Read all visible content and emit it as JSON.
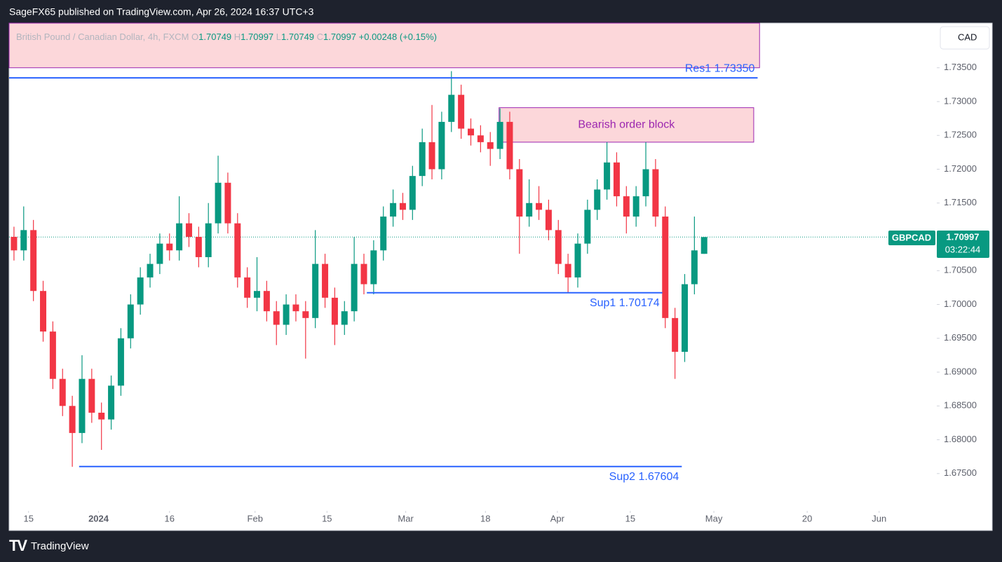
{
  "publisher": "SageFX65 published on TradingView.com, Apr 26, 2024 16:37 UTC+3",
  "brand": "TradingView",
  "currency_button": "CAD",
  "chart_data": {
    "type": "candlestick",
    "title": "British Pound / Canadian Dollar, 4h, FXCM",
    "legend": {
      "open_label": "O",
      "high_label": "H",
      "low_label": "L",
      "close_label": "C",
      "change": "+0.00248",
      "change_pct": "(+0.15%)"
    },
    "up_color": "#089981",
    "down_color": "#f23645",
    "open": [
      1.71,
      1.708,
      1.711,
      1.702,
      1.696,
      1.689,
      1.685,
      1.681,
      1.689,
      1.684,
      1.683,
      1.688,
      1.695,
      1.7,
      1.704,
      1.706,
      1.709,
      1.708,
      1.712,
      1.71,
      1.707,
      1.712,
      1.718,
      1.712,
      1.704,
      1.701,
      1.702,
      1.699,
      1.697,
      1.7,
      1.699,
      1.698,
      1.706,
      1.701,
      1.697,
      1.699,
      1.706,
      1.703,
      1.708,
      1.713,
      1.715,
      1.714,
      1.719,
      1.724,
      1.72,
      1.727,
      1.731,
      1.726,
      1.725,
      1.724,
      1.723,
      1.727,
      1.72,
      1.713,
      1.715,
      1.714,
      1.711,
      1.706,
      1.704,
      1.709,
      1.714,
      1.717,
      1.721,
      1.716,
      1.713,
      1.716,
      1.72,
      1.713,
      1.698,
      1.693,
      1.703,
      1.70749
    ],
    "high": [
      1.7115,
      1.7145,
      1.7125,
      1.7035,
      1.6975,
      1.6905,
      1.6865,
      1.6925,
      1.6905,
      1.6855,
      1.6895,
      1.6965,
      1.7015,
      1.7055,
      1.7075,
      1.7105,
      1.7105,
      1.716,
      1.7135,
      1.7115,
      1.715,
      1.722,
      1.7195,
      1.7135,
      1.7055,
      1.707,
      1.7035,
      1.7005,
      1.7015,
      1.7015,
      1.7005,
      1.711,
      1.7075,
      1.7025,
      1.7005,
      1.71,
      1.7075,
      1.7095,
      1.7145,
      1.717,
      1.7165,
      1.7205,
      1.726,
      1.7295,
      1.7285,
      1.7345,
      1.7325,
      1.7275,
      1.7265,
      1.7255,
      1.729,
      1.7285,
      1.7215,
      1.7185,
      1.7175,
      1.7155,
      1.7125,
      1.7075,
      1.7105,
      1.7155,
      1.7185,
      1.724,
      1.7225,
      1.7175,
      1.7175,
      1.724,
      1.7215,
      1.7145,
      1.6995,
      1.7045,
      1.713,
      1.70997
    ],
    "low": [
      1.7065,
      1.7065,
      1.7005,
      1.6945,
      1.6875,
      1.6835,
      1.676,
      1.6795,
      1.6825,
      1.6785,
      1.6815,
      1.6865,
      1.6935,
      1.6985,
      1.7025,
      1.7045,
      1.7065,
      1.7065,
      1.7085,
      1.7055,
      1.7055,
      1.7105,
      1.7105,
      1.7025,
      1.6995,
      1.699,
      1.6975,
      1.694,
      1.6955,
      1.6975,
      1.692,
      1.6965,
      1.6995,
      1.694,
      1.6955,
      1.6975,
      1.7015,
      1.7015,
      1.7065,
      1.7115,
      1.7125,
      1.7125,
      1.7175,
      1.7185,
      1.7185,
      1.7255,
      1.7245,
      1.7235,
      1.7225,
      1.7205,
      1.7215,
      1.7185,
      1.7075,
      1.7115,
      1.7125,
      1.7095,
      1.7045,
      1.7017,
      1.7025,
      1.7075,
      1.7125,
      1.7155,
      1.7145,
      1.7105,
      1.7115,
      1.7145,
      1.7115,
      1.6965,
      1.689,
      1.6915,
      1.7015,
      1.70749
    ],
    "close": [
      1.708,
      1.711,
      1.702,
      1.696,
      1.689,
      1.685,
      1.681,
      1.689,
      1.684,
      1.683,
      1.688,
      1.695,
      1.7,
      1.704,
      1.706,
      1.709,
      1.708,
      1.712,
      1.71,
      1.707,
      1.712,
      1.718,
      1.712,
      1.704,
      1.701,
      1.702,
      1.699,
      1.697,
      1.7,
      1.699,
      1.698,
      1.706,
      1.701,
      1.697,
      1.699,
      1.706,
      1.703,
      1.708,
      1.713,
      1.715,
      1.714,
      1.719,
      1.724,
      1.72,
      1.727,
      1.731,
      1.726,
      1.725,
      1.724,
      1.723,
      1.727,
      1.72,
      1.713,
      1.715,
      1.714,
      1.711,
      1.706,
      1.704,
      1.709,
      1.714,
      1.717,
      1.721,
      1.716,
      1.713,
      1.716,
      1.72,
      1.713,
      1.698,
      1.693,
      1.703,
      1.708,
      1.70997
    ],
    "xlim": [
      0,
      95
    ],
    "ylim": [
      1.6698,
      1.7416
    ],
    "xticks": [
      {
        "value": 2.0,
        "label": "15"
      },
      {
        "value": 9.2,
        "label": "2024"
      },
      {
        "value": 16.5,
        "label": "16"
      },
      {
        "value": 25.3,
        "label": "Feb"
      },
      {
        "value": 32.7,
        "label": "15"
      },
      {
        "value": 40.8,
        "label": "Mar"
      },
      {
        "value": 49.0,
        "label": "18"
      },
      {
        "value": 56.4,
        "label": "Apr"
      },
      {
        "value": 63.9,
        "label": "15"
      },
      {
        "value": 72.5,
        "label": "May"
      },
      {
        "value": 82.1,
        "label": "20"
      },
      {
        "value": 89.5,
        "label": "Jun"
      }
    ],
    "yticks": [
      {
        "value": 1.675,
        "label": "1.67500"
      },
      {
        "value": 1.68,
        "label": "1.68000"
      },
      {
        "value": 1.685,
        "label": "1.68500"
      },
      {
        "value": 1.69,
        "label": "1.69000"
      },
      {
        "value": 1.695,
        "label": "1.69500"
      },
      {
        "value": 1.7,
        "label": "1.70000"
      },
      {
        "value": 1.705,
        "label": "1.70500"
      },
      {
        "value": 1.71,
        "label": "1.71000"
      },
      {
        "value": 1.715,
        "label": "1.71500"
      },
      {
        "value": 1.72,
        "label": "1.72000"
      },
      {
        "value": 1.725,
        "label": "1.72500"
      },
      {
        "value": 1.73,
        "label": "1.73000"
      },
      {
        "value": 1.735,
        "label": "1.73500"
      }
    ],
    "levels": [
      {
        "label": "Res1 1.73350",
        "value": 1.7335,
        "x_range": [
          0,
          77.0
        ]
      },
      {
        "label": "Sup1 1.70174",
        "value": 1.70174,
        "x_range": [
          36.8,
          67.2
        ]
      },
      {
        "label": "Sup2 1.67604",
        "value": 1.67604,
        "x_range": [
          7.2,
          69.2
        ]
      }
    ],
    "zones": [
      {
        "range": [
          1.735,
          1.7416
        ],
        "x_range": [
          0,
          77.2
        ]
      },
      {
        "label": "Bearish order block",
        "range": [
          1.724,
          1.7291
        ],
        "x_range": [
          50.4,
          76.6
        ]
      }
    ],
    "price_tag": {
      "symbol": "GBPCAD",
      "countdown": "03:22:44"
    }
  }
}
